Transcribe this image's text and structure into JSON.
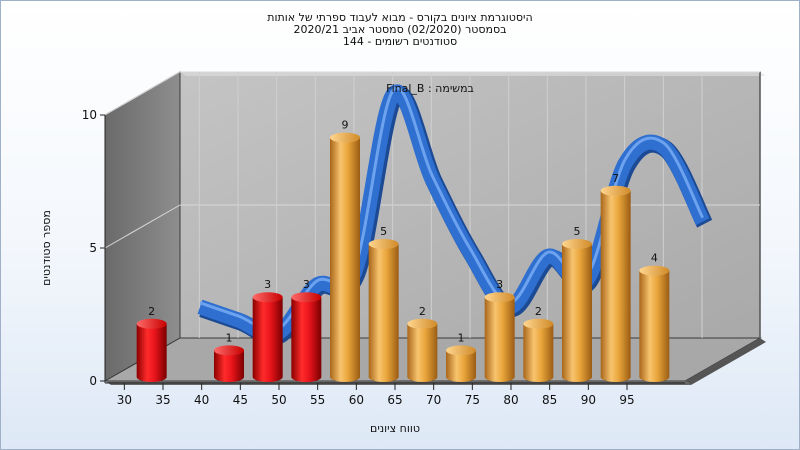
{
  "title": {
    "line1": "היסטוגרמת ציונים בקורס - מבוא לעבוד ספרתי של אותות",
    "line2": "בסמסטר  (02/2020)  סמסטר אביב 2020/21",
    "line3": "סטודנטים רשומים - 144"
  },
  "colors": {
    "fail_bar": "#e8141b",
    "pass_bar": "#e9a53a",
    "curve": "#2e6fd0",
    "back_wall": "#b4b4b4",
    "side_wall": "#7a7a7a"
  },
  "chart_data": {
    "type": "bar",
    "legend_text": "Final_B : במשימה",
    "xlabel": "טווח ציונים",
    "ylabel": "מספר סטודנטים",
    "ylim": [
      0,
      10
    ],
    "y_ticks": [
      0,
      5,
      10
    ],
    "x_ticks": [
      30,
      35,
      40,
      45,
      50,
      55,
      60,
      65,
      70,
      75,
      80,
      85,
      90,
      95
    ],
    "bins": [
      {
        "x": 32.5,
        "value": 2,
        "group": "fail"
      },
      {
        "x": 42.5,
        "value": 1,
        "group": "fail"
      },
      {
        "x": 47.5,
        "value": 3,
        "group": "fail"
      },
      {
        "x": 52.5,
        "value": 3,
        "group": "fail"
      },
      {
        "x": 57.5,
        "value": 9,
        "group": "pass"
      },
      {
        "x": 62.5,
        "value": 5,
        "group": "pass"
      },
      {
        "x": 67.5,
        "value": 2,
        "group": "pass"
      },
      {
        "x": 72.5,
        "value": 1,
        "group": "pass"
      },
      {
        "x": 77.5,
        "value": 3,
        "group": "pass"
      },
      {
        "x": 82.5,
        "value": 2,
        "group": "pass"
      },
      {
        "x": 87.5,
        "value": 5,
        "group": "pass"
      },
      {
        "x": 92.5,
        "value": 7,
        "group": "pass"
      },
      {
        "x": 97.5,
        "value": 4,
        "group": "pass"
      }
    ],
    "trend_curve": {
      "x": [
        35,
        40,
        45,
        50,
        55,
        60,
        65,
        70,
        75,
        80,
        85,
        90,
        95,
        100
      ],
      "y": [
        2,
        1.5,
        1,
        2.8,
        3.3,
        10,
        6.8,
        4,
        2,
        3.9,
        3,
        7.4,
        8,
        5.2
      ]
    }
  }
}
